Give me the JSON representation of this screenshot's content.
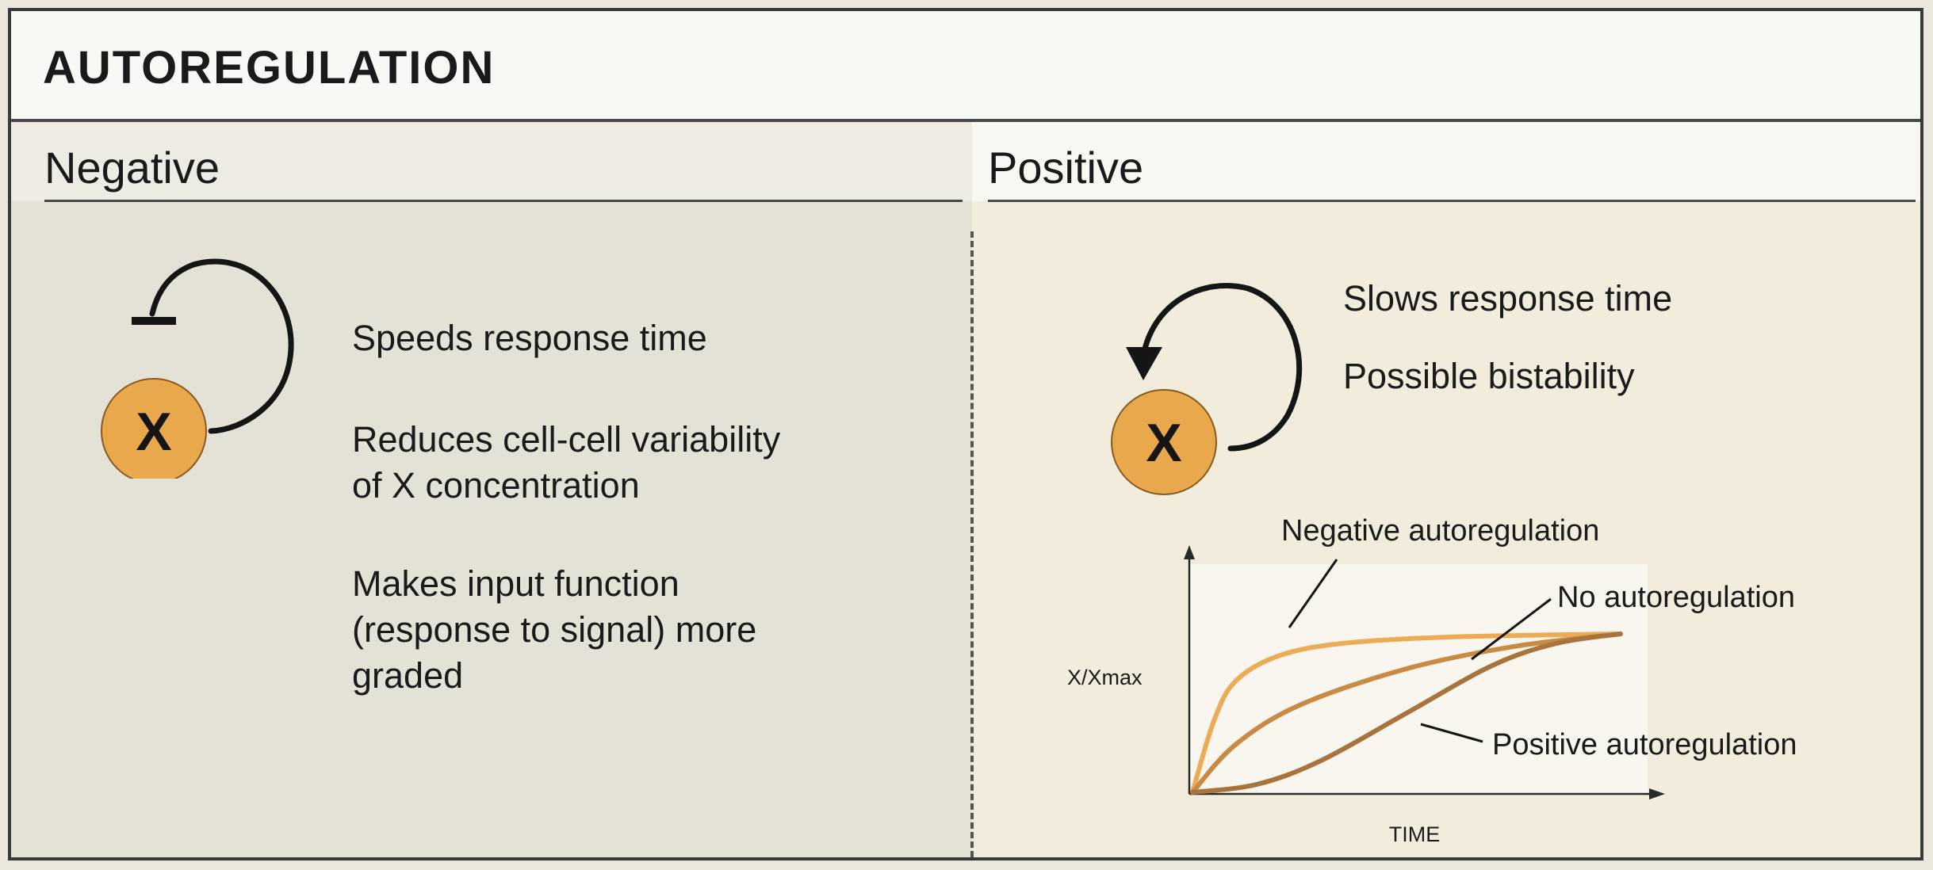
{
  "title": "AUTOREGULATION",
  "negative": {
    "heading": "Negative",
    "node_label": "X",
    "effects": [
      "Speeds response time",
      "Reduces cell-cell variability\nof X concentration",
      "Makes input function\n(response to signal) more\ngraded"
    ]
  },
  "positive": {
    "heading": "Positive",
    "node_label": "X",
    "effects": [
      "Slows response time",
      "Possible bistability"
    ]
  },
  "chart_data": {
    "type": "line",
    "xlabel": "TIME",
    "ylabel": "X/Xmax",
    "series": [
      {
        "name": "Negative autoregulation",
        "values": [
          [
            0,
            0
          ],
          [
            0.05,
            0.45
          ],
          [
            0.1,
            0.7
          ],
          [
            0.2,
            0.86
          ],
          [
            0.35,
            0.94
          ],
          [
            0.6,
            0.98
          ],
          [
            1,
            1
          ]
        ]
      },
      {
        "name": "No autoregulation",
        "values": [
          [
            0,
            0
          ],
          [
            0.1,
            0.3
          ],
          [
            0.25,
            0.55
          ],
          [
            0.5,
            0.78
          ],
          [
            0.75,
            0.92
          ],
          [
            1,
            1
          ]
        ]
      },
      {
        "name": "Positive autoregulation",
        "values": [
          [
            0,
            0
          ],
          [
            0.15,
            0.05
          ],
          [
            0.3,
            0.2
          ],
          [
            0.5,
            0.5
          ],
          [
            0.7,
            0.8
          ],
          [
            0.85,
            0.94
          ],
          [
            1,
            1
          ]
        ]
      }
    ]
  },
  "colors": {
    "node_fill": "#e9a84c",
    "negative_curve": "#ecac56",
    "no_auto_curve": "#c98a43",
    "positive_curve": "#a9733d"
  }
}
